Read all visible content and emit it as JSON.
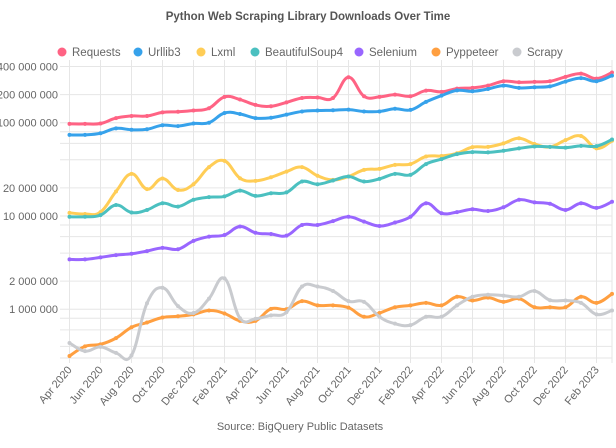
{
  "chart_data": {
    "type": "line",
    "title": "Python Web Scraping Library Downloads Over Time",
    "caption": "Source: BigQuery Public Datasets",
    "xlabel": "",
    "ylabel": "",
    "y_scale": "log",
    "ylim": [
      300000,
      470000000
    ],
    "grid": true,
    "legend": "top",
    "y_ticks": [
      {
        "value": 400000000,
        "label": "400 000 000"
      },
      {
        "value": 200000000,
        "label": "200 000 000"
      },
      {
        "value": 100000000,
        "label": "100 000 000"
      },
      {
        "value": 80000000,
        "label": ""
      },
      {
        "value": 60000000,
        "label": ""
      },
      {
        "value": 40000000,
        "label": ""
      },
      {
        "value": 20000000,
        "label": "20 000 000"
      },
      {
        "value": 10000000,
        "label": "10 000 000"
      },
      {
        "value": 8000000,
        "label": ""
      },
      {
        "value": 6000000,
        "label": ""
      },
      {
        "value": 4000000,
        "label": ""
      },
      {
        "value": 2000000,
        "label": "2 000 000"
      },
      {
        "value": 1000000,
        "label": "1 000 000"
      },
      {
        "value": 800000,
        "label": ""
      },
      {
        "value": 600000,
        "label": ""
      },
      {
        "value": 400000,
        "label": ""
      }
    ],
    "x": [
      "Apr 2020",
      "May 2020",
      "Jun 2020",
      "Jul 2020",
      "Aug 2020",
      "Sep 2020",
      "Oct 2020",
      "Nov 2020",
      "Dec 2020",
      "Jan 2021",
      "Feb 2021",
      "Mar 2021",
      "Apr 2021",
      "May 2021",
      "Jun 2021",
      "Jul 2021",
      "Aug 2021",
      "Sep 2021",
      "Oct 2021",
      "Nov 2021",
      "Dec 2021",
      "Jan 2022",
      "Feb 2022",
      "Mar 2022",
      "Apr 2022",
      "May 2022",
      "Jun 2022",
      "Jul 2022",
      "Aug 2022",
      "Sep 2022",
      "Oct 2022",
      "Nov 2022",
      "Dec 2022",
      "Jan 2023",
      "Feb 2023",
      "Mar 2023"
    ],
    "x_tick_labels": [
      "Apr 2020",
      "Jun 2020",
      "Aug 2020",
      "Oct 2020",
      "Dec 2020",
      "Feb 2021",
      "Apr 2021",
      "Jun 2021",
      "Aug 2021",
      "Oct 2021",
      "Dec 2021",
      "Feb 2022",
      "Apr 2022",
      "Jun 2022",
      "Aug 2022",
      "Oct 2022",
      "Dec 2022",
      "Feb 2023"
    ],
    "series": [
      {
        "name": "Requests",
        "color": "#ff6384",
        "values": [
          97000000,
          97000000,
          98000000,
          112000000,
          118000000,
          118000000,
          129000000,
          131000000,
          135000000,
          143000000,
          189000000,
          177000000,
          155000000,
          150000000,
          165000000,
          184000000,
          186000000,
          184000000,
          307000000,
          192000000,
          189000000,
          200000000,
          192000000,
          221000000,
          214000000,
          232000000,
          236000000,
          250000000,
          278000000,
          271000000,
          274000000,
          278000000,
          310000000,
          336000000,
          297000000,
          345000000
        ]
      },
      {
        "name": "Urllib3",
        "color": "#36a2eb",
        "values": [
          74000000,
          74000000,
          77000000,
          87000000,
          84000000,
          85000000,
          94000000,
          92000000,
          98000000,
          100000000,
          127000000,
          124000000,
          112000000,
          113000000,
          122000000,
          132000000,
          135000000,
          136000000,
          138000000,
          132000000,
          132000000,
          141000000,
          137000000,
          167000000,
          195000000,
          222000000,
          217000000,
          230000000,
          250000000,
          236000000,
          240000000,
          245000000,
          276000000,
          300000000,
          278000000,
          320000000
        ]
      },
      {
        "name": "Lxml",
        "color": "#ffcd56",
        "values": [
          10800000,
          10500000,
          11000000,
          18300000,
          28300000,
          19400000,
          25200000,
          19000000,
          21900000,
          33400000,
          39000000,
          25400000,
          23800000,
          26000000,
          29900000,
          33400000,
          27000000,
          24400000,
          26500000,
          31200000,
          32000000,
          35300000,
          36000000,
          43400000,
          44000000,
          47000000,
          54700000,
          55000000,
          60000000,
          68000000,
          59000000,
          55000000,
          65000000,
          72000000,
          53000000,
          64000000
        ]
      },
      {
        "name": "BeautifulSoup4",
        "color": "#4bc0c0",
        "values": [
          9800000,
          9800000,
          10200000,
          13100000,
          10900000,
          11600000,
          13700000,
          12600000,
          14900000,
          15900000,
          16200000,
          18700000,
          16400000,
          17500000,
          17900000,
          23400000,
          21900000,
          24000000,
          26500000,
          23400000,
          25000000,
          28300000,
          27600000,
          36000000,
          40700000,
          46000000,
          48400000,
          48000000,
          50000000,
          53000000,
          55600000,
          55000000,
          54000000,
          56500000,
          56000000,
          66000000
        ]
      },
      {
        "name": "Selenium",
        "color": "#9966ff",
        "values": [
          3420000,
          3420000,
          3600000,
          3800000,
          3930000,
          4200000,
          4550000,
          4400000,
          5400000,
          6000000,
          6250000,
          7700000,
          6600000,
          6400000,
          6150000,
          8000000,
          8000000,
          8800000,
          9800000,
          8700000,
          7800000,
          8500000,
          9800000,
          13700000,
          10700000,
          11000000,
          11800000,
          11300000,
          12400000,
          14900000,
          14000000,
          13500000,
          11600000,
          13700000,
          12200000,
          14200000
        ]
      },
      {
        "name": "Pyppeteer",
        "color": "#ff9f40",
        "values": [
          315000,
          400000,
          420000,
          490000,
          640000,
          720000,
          815000,
          840000,
          880000,
          970000,
          900000,
          750000,
          750000,
          1010000,
          1000000,
          1220000,
          1100000,
          1100000,
          1040000,
          830000,
          910000,
          1050000,
          1100000,
          1170000,
          1100000,
          1360000,
          1240000,
          1330000,
          1200000,
          1300000,
          1050000,
          1050000,
          1050000,
          1360000,
          1170000,
          1460000
        ]
      },
      {
        "name": "Scrapy",
        "color": "#c9cbcf",
        "values": [
          435000,
          355000,
          395000,
          340000,
          320000,
          1160000,
          1700000,
          1080000,
          910000,
          1300000,
          2140000,
          800000,
          790000,
          860000,
          930000,
          1750000,
          1750000,
          1570000,
          1220000,
          1200000,
          830000,
          700000,
          675000,
          830000,
          830000,
          1100000,
          1360000,
          1430000,
          1400000,
          1360000,
          1570000,
          1250000,
          1240000,
          1170000,
          880000,
          970000
        ]
      }
    ]
  }
}
